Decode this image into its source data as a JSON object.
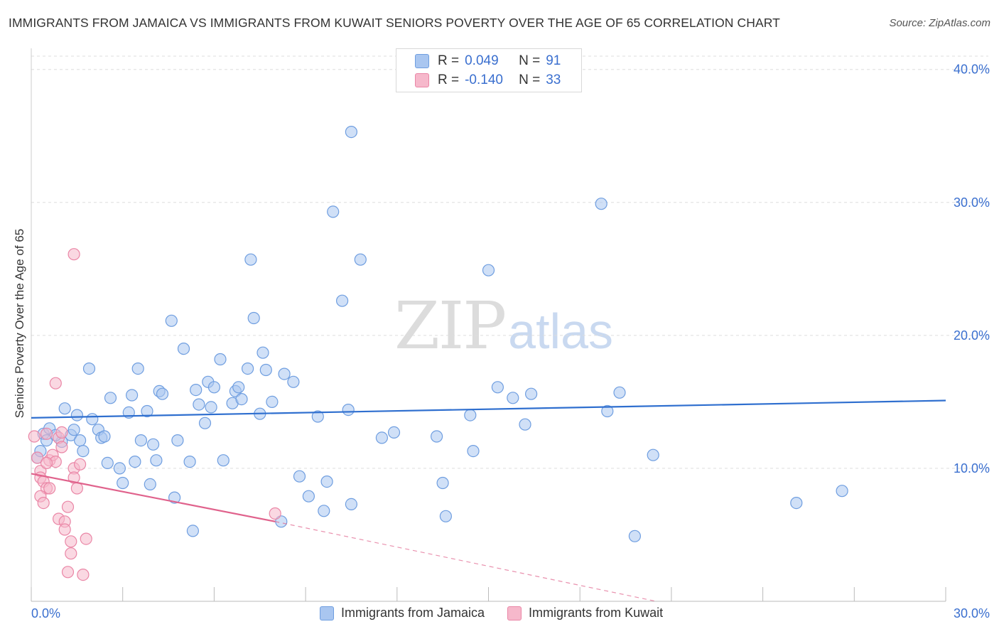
{
  "header": {
    "title": "IMMIGRANTS FROM JAMAICA VS IMMIGRANTS FROM KUWAIT SENIORS POVERTY OVER THE AGE OF 65 CORRELATION CHART",
    "source": "Source: ZipAtlas.com"
  },
  "watermark": {
    "zip": "ZIP",
    "atlas": "atlas"
  },
  "legend": {
    "jamaica": {
      "r_label": "R =",
      "r_value": "0.049",
      "n_label": "N =",
      "n_value": "91"
    },
    "kuwait": {
      "r_label": "R =",
      "r_value": "-0.140",
      "n_label": "N =",
      "n_value": "33"
    }
  },
  "colors": {
    "jamaica_fill": "#a9c6f0",
    "jamaica_stroke": "#6f9ee0",
    "jamaica_line": "#2f6fcf",
    "kuwait_fill": "#f6b8cb",
    "kuwait_stroke": "#ea86a6",
    "kuwait_line": "#e0628c",
    "grid": "#dddddd",
    "tick_label": "#3a6fcf"
  },
  "chart_data": {
    "type": "scatter",
    "title": "IMMIGRANTS FROM JAMAICA VS IMMIGRANTS FROM KUWAIT SENIORS POVERTY OVER THE AGE OF 65 CORRELATION CHART",
    "xlabel": "",
    "ylabel": "Seniors Poverty Over the Age of 65",
    "xlim": [
      0,
      30
    ],
    "ylim": [
      0,
      41
    ],
    "x_tick_labels": [
      "0.0%",
      "30.0%"
    ],
    "y_ticks": [
      10,
      20,
      30,
      40
    ],
    "y_tick_labels": [
      "10.0%",
      "20.0%",
      "30.0%",
      "40.0%"
    ],
    "grid": true,
    "legend_position": "top-center",
    "series": [
      {
        "name": "Immigrants from Jamaica",
        "R": 0.049,
        "N": 91,
        "trend": {
          "x": [
            0,
            30
          ],
          "y": [
            13.8,
            15.1
          ],
          "dashed_beyond": null
        },
        "points": [
          [
            0.2,
            10.8
          ],
          [
            0.3,
            11.3
          ],
          [
            0.4,
            12.6
          ],
          [
            0.6,
            13.0
          ],
          [
            0.5,
            12.1
          ],
          [
            1.1,
            14.5
          ],
          [
            1.0,
            12.0
          ],
          [
            1.3,
            12.5
          ],
          [
            1.5,
            14.0
          ],
          [
            1.6,
            12.1
          ],
          [
            1.7,
            11.3
          ],
          [
            1.9,
            17.5
          ],
          [
            2.0,
            13.7
          ],
          [
            2.2,
            12.9
          ],
          [
            2.3,
            12.3
          ],
          [
            2.4,
            12.4
          ],
          [
            2.5,
            10.4
          ],
          [
            2.6,
            15.3
          ],
          [
            2.9,
            10.0
          ],
          [
            3.0,
            8.9
          ],
          [
            3.2,
            14.2
          ],
          [
            3.3,
            15.5
          ],
          [
            3.4,
            10.5
          ],
          [
            3.5,
            17.5
          ],
          [
            3.6,
            12.1
          ],
          [
            3.8,
            14.3
          ],
          [
            3.9,
            8.8
          ],
          [
            4.0,
            11.8
          ],
          [
            4.1,
            10.6
          ],
          [
            4.2,
            15.8
          ],
          [
            4.3,
            15.6
          ],
          [
            4.6,
            21.1
          ],
          [
            4.7,
            7.8
          ],
          [
            4.8,
            12.1
          ],
          [
            5.0,
            19.0
          ],
          [
            5.2,
            10.5
          ],
          [
            5.3,
            5.3
          ],
          [
            5.4,
            15.9
          ],
          [
            5.5,
            14.8
          ],
          [
            5.7,
            13.4
          ],
          [
            5.8,
            16.5
          ],
          [
            5.9,
            14.6
          ],
          [
            6.0,
            16.1
          ],
          [
            6.2,
            18.2
          ],
          [
            6.3,
            10.6
          ],
          [
            6.6,
            14.9
          ],
          [
            6.7,
            15.8
          ],
          [
            6.8,
            16.1
          ],
          [
            6.9,
            15.2
          ],
          [
            7.1,
            17.5
          ],
          [
            7.2,
            25.7
          ],
          [
            7.3,
            21.3
          ],
          [
            7.5,
            14.1
          ],
          [
            7.6,
            18.7
          ],
          [
            7.7,
            17.4
          ],
          [
            7.9,
            15.0
          ],
          [
            8.3,
            17.1
          ],
          [
            8.6,
            16.5
          ],
          [
            8.2,
            6.0
          ],
          [
            8.8,
            9.4
          ],
          [
            9.1,
            7.9
          ],
          [
            9.4,
            13.9
          ],
          [
            9.6,
            6.8
          ],
          [
            9.7,
            9.0
          ],
          [
            9.9,
            29.3
          ],
          [
            10.2,
            22.6
          ],
          [
            10.4,
            14.4
          ],
          [
            10.5,
            7.3
          ],
          [
            10.8,
            25.7
          ],
          [
            11.5,
            12.3
          ],
          [
            11.9,
            12.7
          ],
          [
            10.5,
            35.3
          ],
          [
            13.3,
            12.4
          ],
          [
            13.5,
            8.9
          ],
          [
            13.6,
            6.4
          ],
          [
            14.4,
            14.0
          ],
          [
            14.5,
            11.3
          ],
          [
            15.0,
            24.9
          ],
          [
            15.3,
            16.1
          ],
          [
            15.8,
            15.3
          ],
          [
            16.4,
            15.6
          ],
          [
            16.2,
            13.3
          ],
          [
            18.9,
            14.3
          ],
          [
            18.7,
            29.9
          ],
          [
            19.3,
            15.7
          ],
          [
            19.8,
            4.9
          ],
          [
            20.4,
            11.0
          ],
          [
            25.1,
            7.4
          ],
          [
            26.6,
            8.3
          ],
          [
            0.8,
            12.5
          ],
          [
            1.4,
            12.9
          ]
        ]
      },
      {
        "name": "Immigrants from Kuwait",
        "R": -0.14,
        "N": 33,
        "trend": {
          "x": [
            0,
            8.0
          ],
          "y": [
            9.6,
            6.0
          ],
          "dashed_to": [
            20.5,
            0.0
          ]
        },
        "points": [
          [
            0.1,
            12.4
          ],
          [
            0.2,
            10.8
          ],
          [
            0.3,
            9.8
          ],
          [
            0.3,
            9.3
          ],
          [
            0.4,
            9.0
          ],
          [
            0.5,
            8.5
          ],
          [
            0.3,
            7.9
          ],
          [
            0.4,
            7.4
          ],
          [
            0.6,
            10.6
          ],
          [
            0.6,
            8.5
          ],
          [
            0.5,
            12.6
          ],
          [
            0.7,
            11.0
          ],
          [
            0.8,
            10.5
          ],
          [
            0.9,
            6.2
          ],
          [
            0.8,
            16.4
          ],
          [
            0.9,
            12.3
          ],
          [
            1.0,
            11.6
          ],
          [
            1.1,
            6.0
          ],
          [
            1.1,
            5.4
          ],
          [
            1.0,
            12.7
          ],
          [
            1.2,
            7.1
          ],
          [
            1.3,
            3.6
          ],
          [
            1.2,
            2.2
          ],
          [
            1.3,
            4.5
          ],
          [
            1.4,
            10.0
          ],
          [
            1.4,
            9.3
          ],
          [
            1.5,
            8.5
          ],
          [
            1.6,
            10.3
          ],
          [
            1.7,
            2.0
          ],
          [
            1.8,
            4.7
          ],
          [
            1.4,
            26.1
          ],
          [
            8.0,
            6.6
          ],
          [
            0.5,
            10.4
          ]
        ]
      }
    ]
  },
  "bottom_legend": {
    "jamaica_label": "Immigrants from Jamaica",
    "kuwait_label": "Immigrants from Kuwait"
  }
}
